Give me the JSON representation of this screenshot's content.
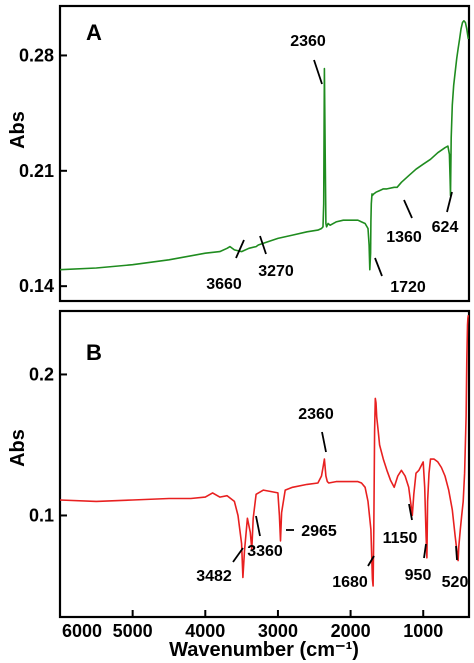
{
  "chart_data": [
    {
      "type": "line",
      "panel": "A",
      "ylabel": "Abs",
      "xlabel": "",
      "color": "#1f8c1f",
      "xlim": [
        6000,
        370
      ],
      "ylim": [
        0.131,
        0.31
      ],
      "yticks": [
        0.14,
        0.21,
        0.28
      ],
      "ytick_labels": [
        "0.14",
        "0.21",
        "0.28"
      ],
      "series": [
        {
          "x": [
            6000,
            5500,
            5000,
            4500,
            4000,
            3800,
            3700,
            3660,
            3600,
            3500,
            3400,
            3300,
            3270,
            3200,
            3000,
            2800,
            2600,
            2450,
            2400,
            2380,
            2370,
            2360,
            2350,
            2340,
            2330,
            2310,
            2280,
            2200,
            2100,
            2000,
            1900,
            1850,
            1800,
            1760,
            1745,
            1735,
            1725,
            1720,
            1715,
            1705,
            1700,
            1680,
            1650,
            1600,
            1550,
            1500,
            1400,
            1360,
            1300,
            1200,
            1100,
            1000,
            900,
            800,
            700,
            660,
            640,
            630,
            624,
            615,
            600,
            580,
            560,
            540,
            520,
            500,
            480,
            460,
            440,
            420,
            400,
            380
          ],
          "y": [
            0.15,
            0.151,
            0.153,
            0.156,
            0.16,
            0.161,
            0.163,
            0.164,
            0.162,
            0.161,
            0.163,
            0.164,
            0.165,
            0.166,
            0.169,
            0.171,
            0.173,
            0.174,
            0.175,
            0.176,
            0.19,
            0.272,
            0.22,
            0.178,
            0.176,
            0.178,
            0.177,
            0.179,
            0.18,
            0.18,
            0.18,
            0.179,
            0.178,
            0.175,
            0.165,
            0.15,
            0.16,
            0.179,
            0.19,
            0.196,
            0.195,
            0.196,
            0.197,
            0.198,
            0.199,
            0.199,
            0.2,
            0.2,
            0.203,
            0.207,
            0.211,
            0.214,
            0.217,
            0.221,
            0.224,
            0.225,
            0.22,
            0.205,
            0.195,
            0.23,
            0.25,
            0.262,
            0.27,
            0.278,
            0.284,
            0.29,
            0.296,
            0.3,
            0.301,
            0.3,
            0.296,
            0.29
          ]
        }
      ],
      "annotations": [
        {
          "text": "2360",
          "x": 2360
        },
        {
          "text": "3660",
          "x": 3660
        },
        {
          "text": "3270",
          "x": 3270
        },
        {
          "text": "1720",
          "x": 1720
        },
        {
          "text": "1360",
          "x": 1360
        },
        {
          "text": "624",
          "x": 624
        }
      ]
    },
    {
      "type": "line",
      "panel": "B",
      "ylabel": "Abs",
      "xlabel": "Wavenumber (cm⁻¹)",
      "color": "#e82020",
      "xlim": [
        6000,
        370
      ],
      "ylim": [
        0.028,
        0.245
      ],
      "yticks": [
        0.1,
        0.2
      ],
      "ytick_labels": [
        "0.1",
        "0.2"
      ],
      "xticks": [
        6000,
        5000,
        4000,
        3000,
        2000,
        1000
      ],
      "xtick_labels": [
        "6000",
        "5000",
        "4000",
        "3000",
        "2000",
        "1000"
      ],
      "series": [
        {
          "x": [
            6000,
            5500,
            5000,
            4500,
            4200,
            4000,
            3900,
            3800,
            3700,
            3600,
            3550,
            3500,
            3482,
            3460,
            3420,
            3380,
            3360,
            3340,
            3300,
            3200,
            3100,
            3000,
            2980,
            2965,
            2950,
            2900,
            2800,
            2600,
            2450,
            2400,
            2380,
            2360,
            2340,
            2320,
            2300,
            2200,
            2000,
            1900,
            1850,
            1800,
            1760,
            1720,
            1700,
            1690,
            1680,
            1670,
            1660,
            1650,
            1640,
            1620,
            1600,
            1550,
            1500,
            1450,
            1400,
            1350,
            1300,
            1250,
            1200,
            1170,
            1150,
            1130,
            1100,
            1060,
            1000,
            980,
            960,
            950,
            940,
            920,
            900,
            850,
            800,
            750,
            700,
            650,
            600,
            560,
            530,
            520,
            510,
            490,
            470,
            450,
            430,
            410,
            400,
            390,
            385,
            380
          ],
          "y": [
            0.111,
            0.11,
            0.111,
            0.112,
            0.112,
            0.113,
            0.116,
            0.113,
            0.114,
            0.11,
            0.1,
            0.08,
            0.056,
            0.075,
            0.098,
            0.088,
            0.076,
            0.098,
            0.115,
            0.118,
            0.117,
            0.116,
            0.1,
            0.082,
            0.102,
            0.118,
            0.12,
            0.122,
            0.123,
            0.128,
            0.134,
            0.14,
            0.128,
            0.124,
            0.123,
            0.124,
            0.124,
            0.124,
            0.123,
            0.12,
            0.11,
            0.09,
            0.055,
            0.05,
            0.09,
            0.16,
            0.183,
            0.18,
            0.17,
            0.16,
            0.15,
            0.14,
            0.132,
            0.125,
            0.12,
            0.128,
            0.132,
            0.128,
            0.12,
            0.108,
            0.1,
            0.115,
            0.13,
            0.132,
            0.138,
            0.12,
            0.085,
            0.07,
            0.11,
            0.13,
            0.14,
            0.14,
            0.138,
            0.134,
            0.128,
            0.118,
            0.104,
            0.085,
            0.072,
            0.068,
            0.078,
            0.09,
            0.1,
            0.11,
            0.13,
            0.17,
            0.21,
            0.235,
            0.24,
            0.242
          ]
        }
      ],
      "annotations": [
        {
          "text": "2360",
          "x": 2360
        },
        {
          "text": "3482",
          "x": 3482
        },
        {
          "text": "3360",
          "x": 3360
        },
        {
          "text": "2965",
          "x": 2965
        },
        {
          "text": "1680",
          "x": 1680
        },
        {
          "text": "1150",
          "x": 1150
        },
        {
          "text": "950",
          "x": 950
        },
        {
          "text": "520",
          "x": 520
        }
      ]
    }
  ]
}
